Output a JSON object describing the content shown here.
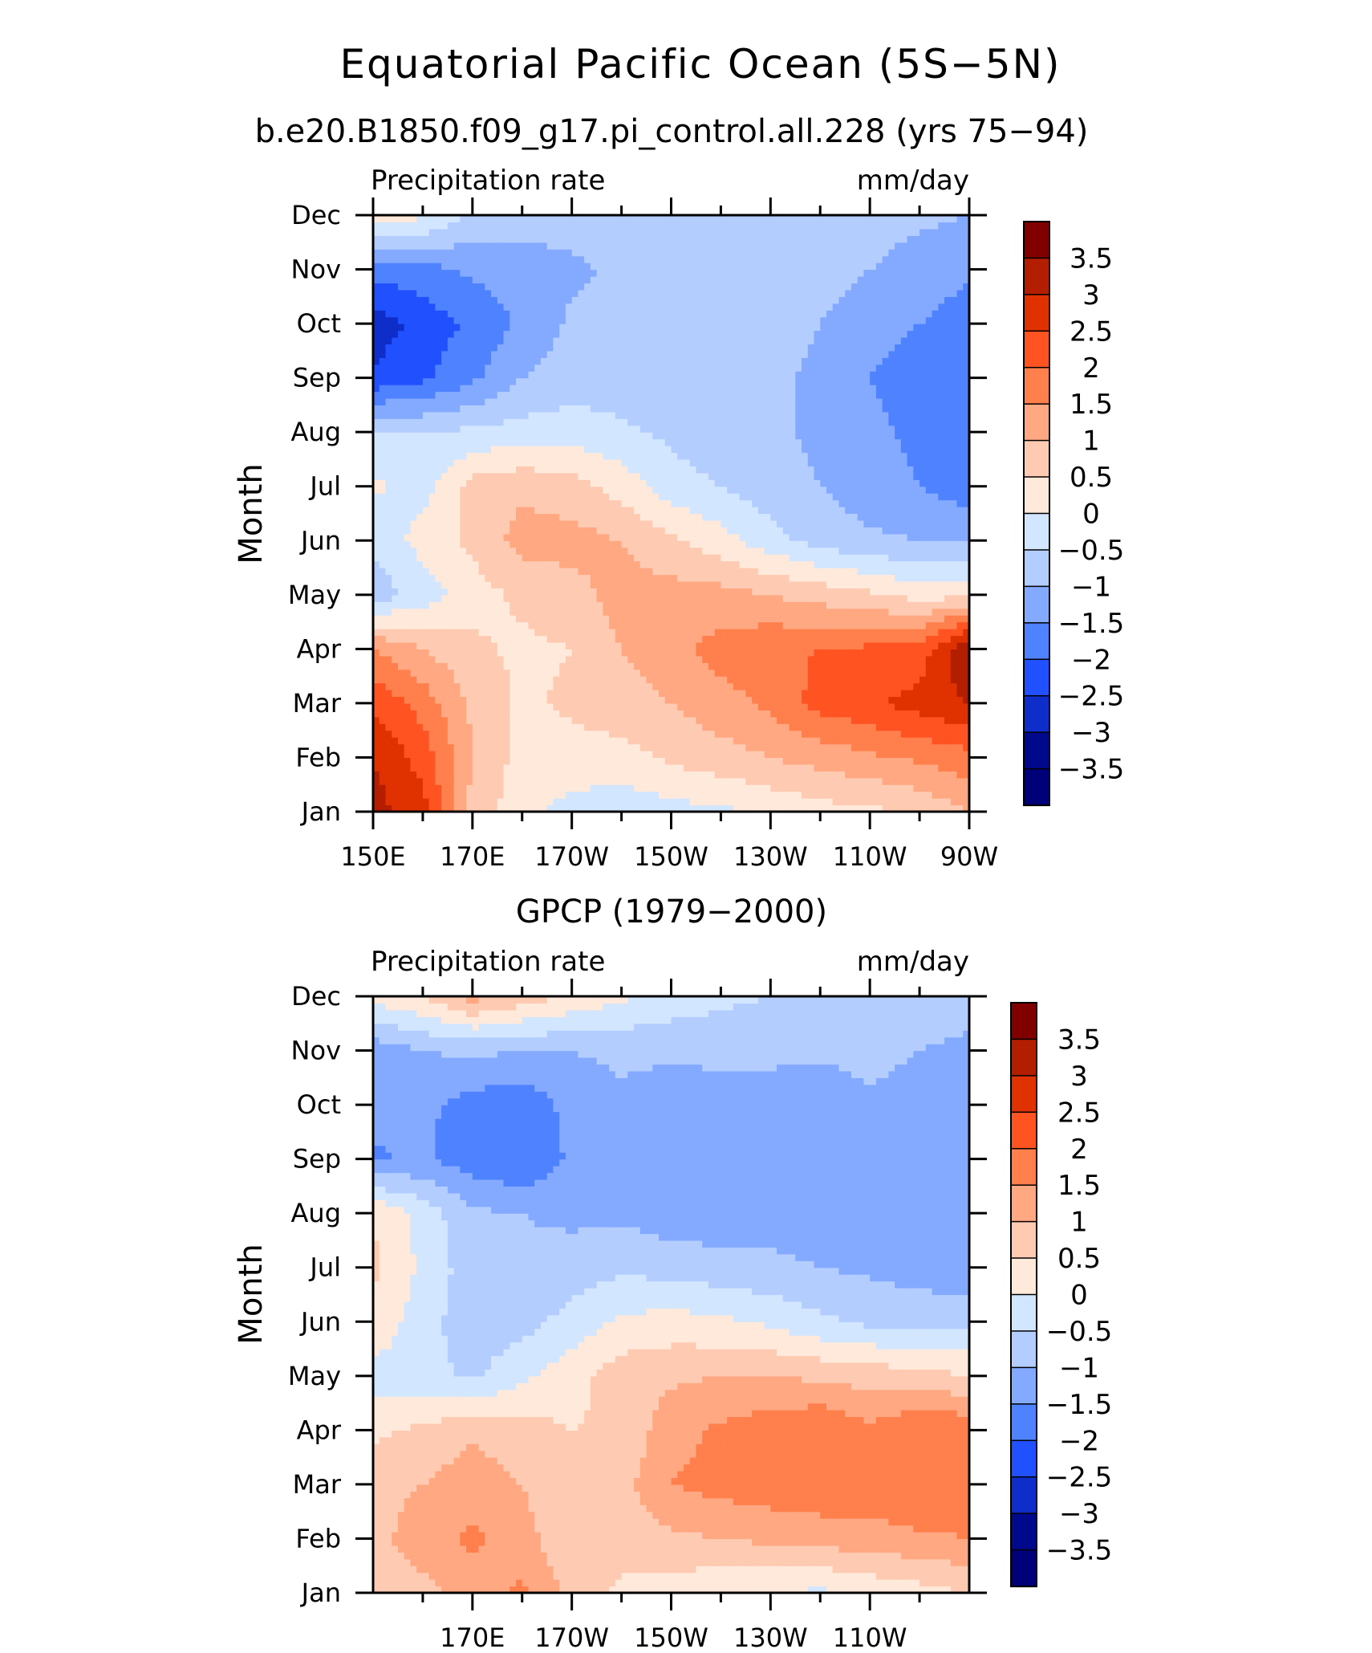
{
  "figure": {
    "title": "Equatorial Pacific Ocean (5S−5N)"
  },
  "colorbar": {
    "labels": [
      "3.5",
      "3",
      "2.5",
      "2",
      "1.5",
      "1",
      "0.5",
      "0",
      "−0.5",
      "−1",
      "−1.5",
      "−2",
      "−2.5",
      "−3",
      "−3.5"
    ],
    "colors": [
      "#800000",
      "#b31e00",
      "#e03100",
      "#ff5322",
      "#ff7f4d",
      "#ffa882",
      "#ffcab2",
      "#ffe9da",
      "#d3e6ff",
      "#b4cdff",
      "#84aaff",
      "#4f82ff",
      "#2151ff",
      "#0f2dc8",
      "#00098c",
      "#000078"
    ]
  },
  "chart_data": [
    {
      "type": "heatmap",
      "title": "b.e20.B1850.f09_g17.pi_control.all.228 (yrs 75−94)",
      "left_label": "Precipitation rate",
      "right_label": "mm/day",
      "ylabel": "Month",
      "x_tick_labels": [
        "150E",
        "170E",
        "170W",
        "150W",
        "130W",
        "110W",
        "90W"
      ],
      "y_tick_labels": [
        "Jan",
        "Feb",
        "Mar",
        "Apr",
        "May",
        "Jun",
        "Jul",
        "Aug",
        "Sep",
        "Oct",
        "Nov",
        "Dec"
      ],
      "x": [
        150,
        160,
        170,
        180,
        190,
        200,
        210,
        220,
        230,
        240,
        250,
        260,
        270
      ],
      "y": [
        "Jan",
        "Feb",
        "Mar",
        "Apr",
        "May",
        "Jun",
        "Jul",
        "Aug",
        "Sep",
        "Oct",
        "Nov",
        "Dec"
      ],
      "z": [
        [
          3.2,
          2.7,
          0.8,
          0.2,
          -0.2,
          -0.3,
          -0.2,
          -0.1,
          0.1,
          0.3,
          0.4,
          0.6,
          1.0
        ],
        [
          3.0,
          2.3,
          1.0,
          0.3,
          0.3,
          0.3,
          0.6,
          0.8,
          1.0,
          1.2,
          1.4,
          1.6,
          1.8
        ],
        [
          2.4,
          1.8,
          0.9,
          0.4,
          0.6,
          0.8,
          1.0,
          1.3,
          1.6,
          2.2,
          2.4,
          2.7,
          3.0
        ],
        [
          1.5,
          1.0,
          0.6,
          0.4,
          0.5,
          1.0,
          1.3,
          1.7,
          1.9,
          2.0,
          2.1,
          2.2,
          3.6
        ],
        [
          -0.8,
          -0.3,
          0.3,
          0.6,
          0.8,
          1.2,
          1.2,
          1.2,
          1.0,
          0.8,
          0.6,
          0.3,
          0.4
        ],
        [
          -0.4,
          0.2,
          0.6,
          1.2,
          1.2,
          1.0,
          0.6,
          0.2,
          -0.3,
          -0.7,
          -0.9,
          -1.0,
          -1.0
        ],
        [
          0.1,
          -0.2,
          0.7,
          0.9,
          0.7,
          0.3,
          -0.3,
          -0.5,
          -0.8,
          -1.0,
          -1.3,
          -1.5,
          -1.8
        ],
        [
          -0.4,
          -0.5,
          -0.4,
          -0.3,
          -0.2,
          -0.4,
          -0.6,
          -0.8,
          -0.9,
          -1.1,
          -1.4,
          -1.6,
          -2.0
        ],
        [
          -2.4,
          -2.1,
          -1.6,
          -1.0,
          -0.8,
          -0.8,
          -0.8,
          -0.8,
          -0.9,
          -1.1,
          -1.5,
          -1.7,
          -2.0
        ],
        [
          -2.8,
          -2.3,
          -1.9,
          -1.4,
          -0.9,
          -0.8,
          -0.7,
          -0.7,
          -0.8,
          -1.0,
          -1.3,
          -1.5,
          -1.8
        ],
        [
          -1.8,
          -1.7,
          -1.4,
          -1.2,
          -1.1,
          -0.9,
          -0.8,
          -0.7,
          -0.7,
          -0.8,
          -1.0,
          -1.2,
          -1.4
        ],
        [
          0.2,
          0.1,
          -0.6,
          -0.8,
          -0.8,
          -0.8,
          -0.8,
          -0.7,
          -0.7,
          -0.7,
          -0.8,
          -0.9,
          -1.0
        ]
      ]
    },
    {
      "type": "heatmap",
      "title": "GPCP (1979−2000)",
      "left_label": "Precipitation rate",
      "right_label": "mm/day",
      "ylabel": "Month",
      "x_tick_labels": [
        "170E",
        "170W",
        "150W",
        "130W",
        "110W"
      ],
      "y_tick_labels": [
        "Jan",
        "Feb",
        "Mar",
        "Apr",
        "May",
        "Jun",
        "Jul",
        "Aug",
        "Sep",
        "Oct",
        "Nov",
        "Dec"
      ],
      "x": [
        150,
        160,
        170,
        180,
        190,
        200,
        210,
        220,
        230,
        240,
        250,
        260,
        270
      ],
      "y": [
        "Jan",
        "Feb",
        "Mar",
        "Apr",
        "May",
        "Jun",
        "Jul",
        "Aug",
        "Sep",
        "Oct",
        "Nov",
        "Dec"
      ],
      "z": [
        [
          0.7,
          0.8,
          1.2,
          1.6,
          0.8,
          0.4,
          0.2,
          0.1,
          0.0,
          -0.1,
          0.1,
          0.3,
          0.5
        ],
        [
          0.8,
          1.3,
          1.6,
          1.2,
          0.6,
          0.7,
          0.9,
          1.0,
          1.1,
          1.2,
          1.3,
          1.4,
          1.5
        ],
        [
          0.8,
          1.0,
          1.3,
          1.0,
          0.5,
          0.8,
          1.5,
          1.7,
          1.8,
          1.9,
          1.8,
          2.0,
          1.8
        ],
        [
          0.4,
          0.6,
          0.9,
          0.7,
          0.5,
          0.6,
          1.3,
          1.6,
          1.8,
          2.0,
          1.6,
          2.0,
          1.9
        ],
        [
          -0.2,
          -0.3,
          -0.6,
          -0.1,
          0.3,
          0.8,
          0.9,
          1.0,
          1.0,
          0.9,
          0.8,
          0.7,
          0.5
        ],
        [
          0.4,
          -0.3,
          -0.8,
          -0.7,
          -0.3,
          0.1,
          0.2,
          0.1,
          -0.1,
          -0.4,
          -0.6,
          -0.7,
          -0.6
        ],
        [
          0.6,
          -0.1,
          -0.8,
          -0.9,
          -0.8,
          -0.6,
          -0.7,
          -0.8,
          -0.9,
          -1.0,
          -1.1,
          -1.2,
          -1.4
        ],
        [
          0.5,
          -0.2,
          -0.9,
          -1.0,
          -1.1,
          -1.1,
          -1.3,
          -1.3,
          -1.2,
          -1.2,
          -1.2,
          -1.3,
          -1.1
        ],
        [
          -1.6,
          -1.4,
          -1.8,
          -2.0,
          -1.4,
          -1.2,
          -1.4,
          -1.5,
          -1.5,
          -1.5,
          -1.2,
          -1.2,
          -1.2
        ],
        [
          -1.2,
          -1.4,
          -1.7,
          -1.9,
          -1.3,
          -1.1,
          -1.3,
          -1.4,
          -1.4,
          -1.4,
          -1.1,
          -1.3,
          -1.4
        ],
        [
          -1.3,
          -1.0,
          -0.9,
          -1.0,
          -1.0,
          -0.9,
          -0.9,
          -0.8,
          -0.8,
          -0.9,
          -0.8,
          -1.0,
          -1.2
        ],
        [
          0.2,
          0.5,
          1.2,
          0.8,
          0.4,
          0.1,
          -0.2,
          -0.4,
          -0.5,
          -0.5,
          -0.6,
          -0.6,
          -0.6
        ]
      ]
    }
  ]
}
